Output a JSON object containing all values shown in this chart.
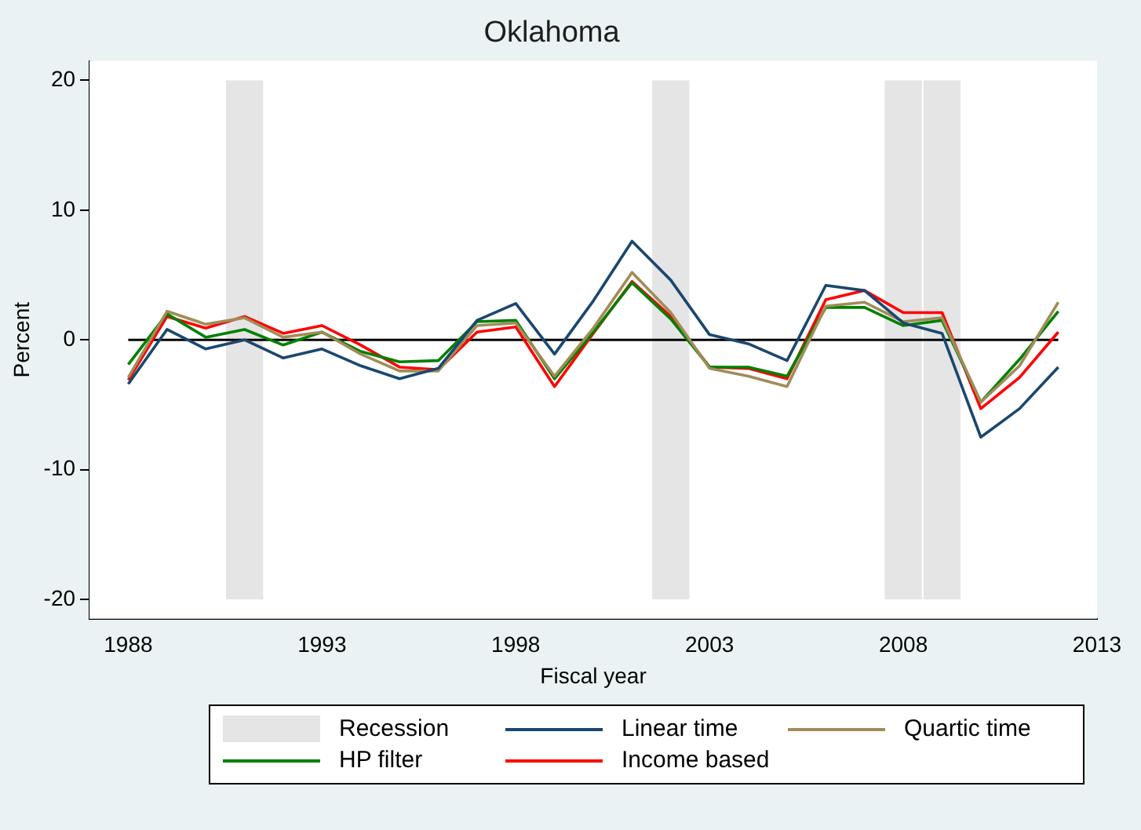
{
  "chart_data": {
    "type": "line",
    "title": "Oklahoma",
    "xlabel": "Fiscal year",
    "ylabel": "Percent",
    "x": [
      1988,
      1989,
      1990,
      1991,
      1992,
      1993,
      1994,
      1995,
      1996,
      1997,
      1998,
      1999,
      2000,
      2001,
      2002,
      2003,
      2004,
      2005,
      2006,
      2007,
      2008,
      2009,
      2010,
      2011,
      2012
    ],
    "series": [
      {
        "name": "Linear time",
        "color": "#1a476f",
        "values": [
          -3.4,
          0.8,
          -0.7,
          0,
          -1.4,
          -0.7,
          -2,
          -3,
          -2.2,
          1.5,
          2.8,
          -1.1,
          3,
          7.6,
          4.6,
          0.4,
          -0.3,
          -1.6,
          4.2,
          3.8,
          1.3,
          0.5,
          -7.5,
          -5.3,
          -2.1
        ]
      },
      {
        "name": "Quartic time",
        "color": "#a08c58",
        "values": [
          -2.9,
          2.2,
          1.2,
          1.7,
          0.2,
          0.6,
          -1.1,
          -2.4,
          -2.4,
          1.1,
          1.3,
          -2.8,
          0.9,
          5.2,
          2.1,
          -2.2,
          -2.8,
          -3.6,
          2.6,
          2.9,
          1.4,
          1.7,
          -4.8,
          -2,
          2.9
        ]
      },
      {
        "name": "HP filter",
        "color": "#008000",
        "values": [
          -1.9,
          2,
          0.2,
          0.8,
          -0.4,
          0.6,
          -0.9,
          -1.7,
          -1.6,
          1.4,
          1.5,
          -3,
          0.6,
          4.4,
          1.6,
          -2.1,
          -2.1,
          -2.8,
          2.5,
          2.5,
          1.1,
          1.5,
          -4.8,
          -1.5,
          2.2
        ]
      },
      {
        "name": "Income based",
        "color": "#ff0000",
        "values": [
          -3.1,
          1.8,
          0.9,
          1.8,
          0.5,
          1.1,
          -0.4,
          -2.1,
          -2.3,
          0.6,
          1,
          -3.6,
          0.5,
          4.5,
          1.8,
          -2.1,
          -2.2,
          -3,
          3.1,
          3.8,
          2.1,
          2.1,
          -5.3,
          -2.9,
          0.6
        ]
      }
    ],
    "xlim": [
      1987,
      2013
    ],
    "xticks": [
      1988,
      1993,
      1998,
      2003,
      2008,
      2013
    ],
    "ylim": [
      -21.5,
      21.5
    ],
    "yticks": [
      -20,
      -10,
      0,
      10,
      20
    ],
    "ref_lines": [
      {
        "axis": "y",
        "value": 0,
        "color": "#000000"
      }
    ],
    "bands": [
      {
        "axis": "x",
        "from": 1990.5,
        "to": 1991.5,
        "label": "Recession",
        "color": "#e5e5e5"
      },
      {
        "axis": "x",
        "from": 2001.5,
        "to": 2002.5,
        "color": "#e5e5e5"
      },
      {
        "axis": "x",
        "from": 2007.5,
        "to": 2008.5,
        "color": "#e5e5e5"
      },
      {
        "axis": "x",
        "from": 2008.5,
        "to": 2009.5,
        "color": "#e5e5e5"
      }
    ],
    "grid": false,
    "legend": "bottom",
    "marker": "none",
    "line_style": "solid"
  }
}
